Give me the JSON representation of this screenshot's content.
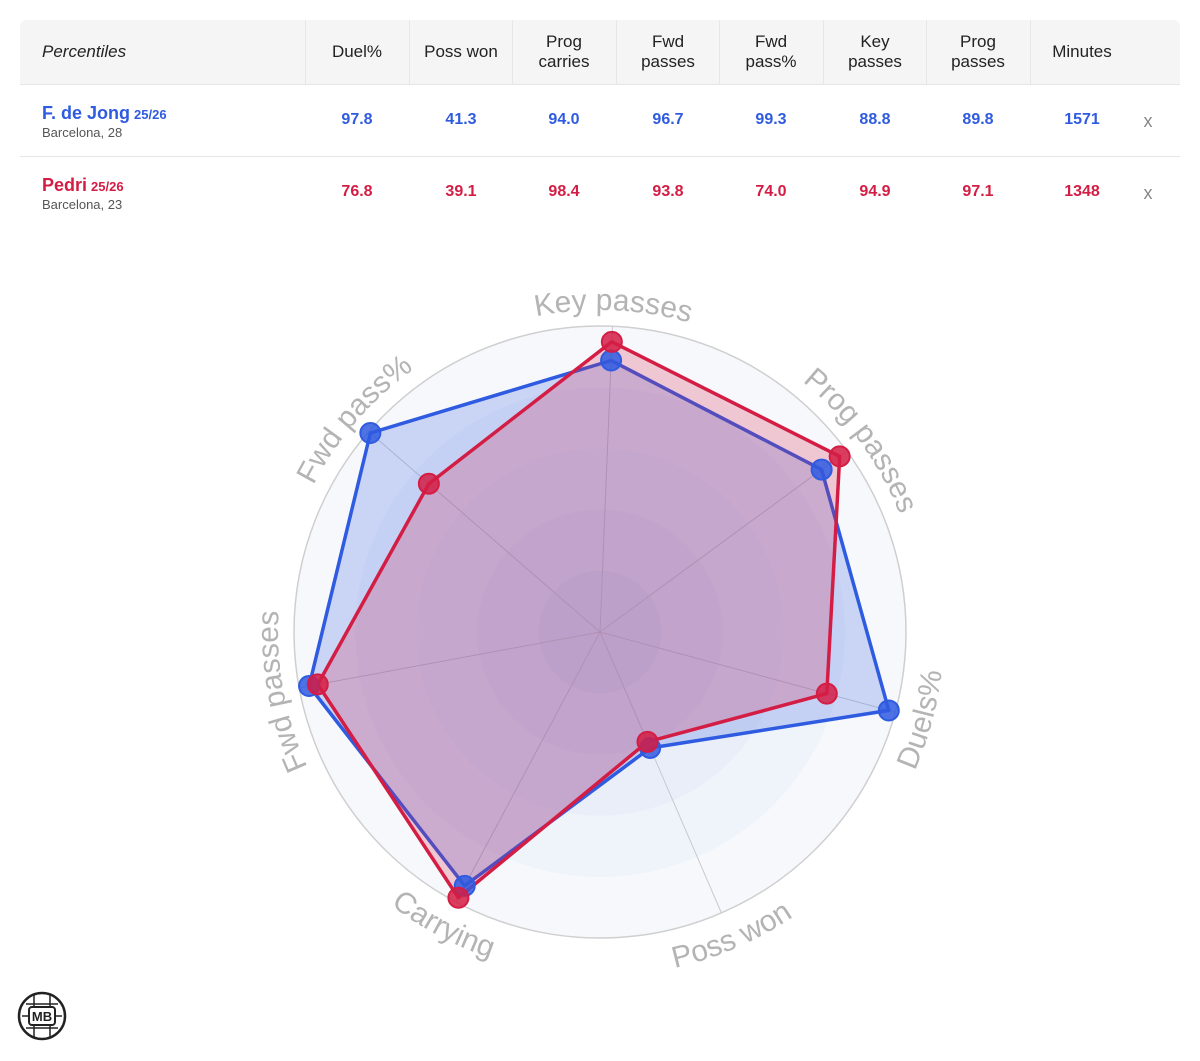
{
  "table": {
    "header_first": "Percentiles",
    "columns": [
      "Duel%",
      "Poss won",
      "Prog\ncarries",
      "Fwd\npasses",
      "Fwd\npass%",
      "Key\npasses",
      "Prog\npasses",
      "Minutes"
    ],
    "remove_label": "x",
    "players": [
      {
        "name": "F. de Jong",
        "season": "25/26",
        "team": "Barcelona, 28",
        "color": "#2f5be0",
        "values": [
          "97.8",
          "41.3",
          "94.0",
          "96.7",
          "99.3",
          "88.8",
          "89.8",
          "1571"
        ]
      },
      {
        "name": "Pedri",
        "season": "25/26",
        "team": "Barcelona, 23",
        "color": "#d41d44",
        "values": [
          "76.8",
          "39.1",
          "98.4",
          "93.8",
          "74.0",
          "94.9",
          "97.1",
          "1348"
        ]
      }
    ]
  },
  "chart_data": {
    "type": "radar",
    "axes": [
      "Key passes",
      "Prog passes",
      "Duels%",
      "Poss won",
      "Carrying",
      "Fwd passes",
      "Fwd pass%"
    ],
    "rlim": [
      0,
      100
    ],
    "series": [
      {
        "name": "F. de Jong",
        "color": "#2f5be0",
        "values": [
          88.8,
          89.8,
          97.8,
          41.3,
          94.0,
          96.7,
          99.3
        ]
      },
      {
        "name": "Pedri",
        "color": "#d41d44",
        "values": [
          94.9,
          97.1,
          76.8,
          39.1,
          98.4,
          93.8,
          74.0
        ]
      }
    ]
  },
  "logo": {
    "text": "MB"
  }
}
